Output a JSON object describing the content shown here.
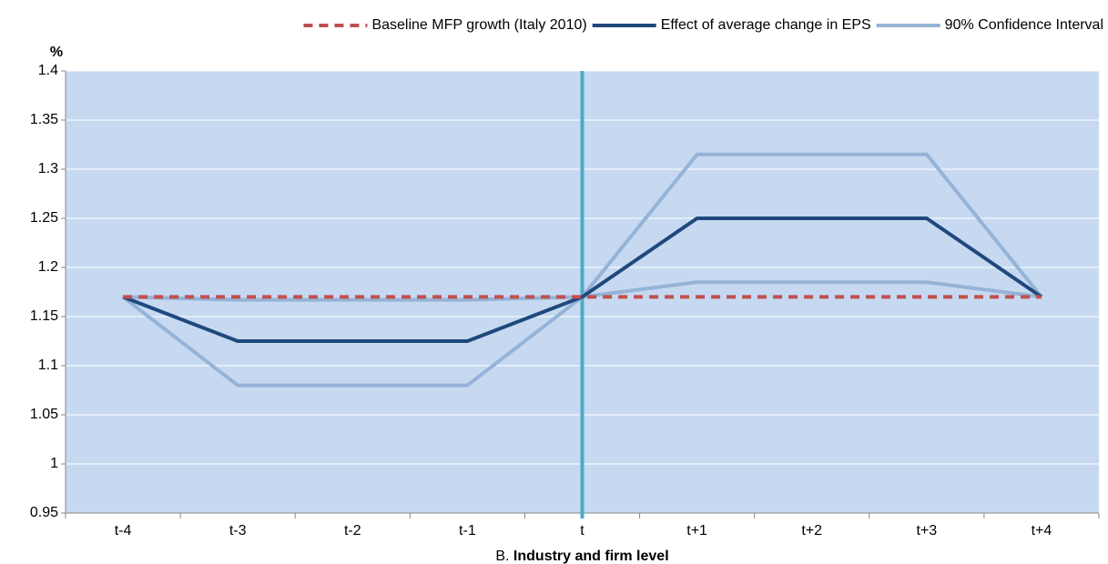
{
  "chart_data": {
    "type": "line",
    "y_label": "%",
    "x_label": {
      "prefix": "B.",
      "text": "Industry and firm level"
    },
    "categories": [
      "t-4",
      "t-3",
      "t-2",
      "t-1",
      "t",
      "t+1",
      "t+2",
      "t+3",
      "t+4"
    ],
    "series": [
      {
        "name": "Baseline MFP growth (Italy 2010)",
        "color": "#c0504d",
        "dashed": true,
        "values": [
          1.17,
          1.17,
          1.17,
          1.17,
          1.17,
          1.17,
          1.17,
          1.17,
          1.17
        ]
      },
      {
        "name": "Effect of average change in EPS",
        "color": "#1f497d",
        "values": [
          1.17,
          1.125,
          1.125,
          1.125,
          1.17,
          1.25,
          1.25,
          1.25,
          1.17
        ]
      },
      {
        "name": "90% Confidence Interval",
        "color": "#95b3d7",
        "values": [
          1.17,
          1.08,
          1.08,
          1.08,
          1.17,
          1.185,
          1.185,
          1.185,
          1.17
        ],
        "upper": [
          1.17,
          1.167,
          1.167,
          1.167,
          1.17,
          1.315,
          1.315,
          1.315,
          1.17
        ]
      }
    ],
    "vline_at": "t",
    "vline_color": "#4bacc6",
    "ylim": [
      0.95,
      1.4
    ],
    "yticks": [
      0.95,
      1,
      1.05,
      1.1,
      1.15,
      1.2,
      1.25,
      1.3,
      1.35,
      1.4
    ],
    "grid": true,
    "plot_background": "#c6d9f1",
    "legend": "top"
  }
}
